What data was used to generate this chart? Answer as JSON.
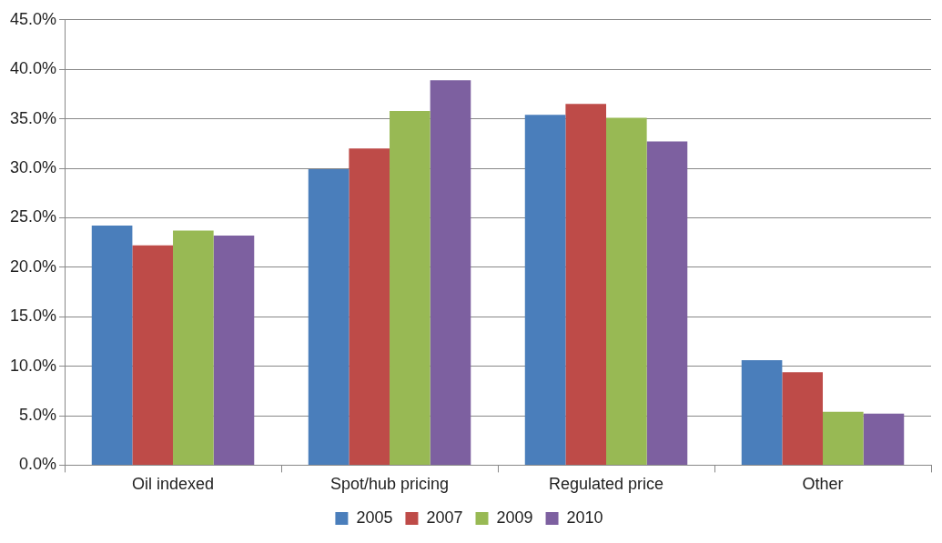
{
  "chart_data": {
    "type": "bar",
    "categories": [
      "Oil indexed",
      "Spot/hub pricing",
      "Regulated price",
      "Other"
    ],
    "series": [
      {
        "name": "2005",
        "color": "#4a7ebb",
        "values": [
          24.2,
          29.9,
          35.4,
          10.6
        ]
      },
      {
        "name": "2007",
        "color": "#be4b48",
        "values": [
          22.2,
          32.0,
          36.5,
          9.4
        ]
      },
      {
        "name": "2009",
        "color": "#98b954",
        "values": [
          23.7,
          35.8,
          35.1,
          5.4
        ]
      },
      {
        "name": "2010",
        "color": "#7d60a0",
        "values": [
          23.2,
          38.9,
          32.7,
          5.2
        ]
      }
    ],
    "ylim": [
      0,
      45
    ],
    "yticks": [
      {
        "value": 0,
        "label": "0.0%"
      },
      {
        "value": 5,
        "label": "5.0%"
      },
      {
        "value": 10,
        "label": "10.0%"
      },
      {
        "value": 15,
        "label": "15.0%"
      },
      {
        "value": 20,
        "label": "20.0%"
      },
      {
        "value": 25,
        "label": "25.0%"
      },
      {
        "value": 30,
        "label": "30.0%"
      },
      {
        "value": 35,
        "label": "35.0%"
      },
      {
        "value": 40,
        "label": "40.0%"
      },
      {
        "value": 45,
        "label": "45.0%"
      }
    ],
    "grid": "y",
    "legend": "bottom"
  }
}
